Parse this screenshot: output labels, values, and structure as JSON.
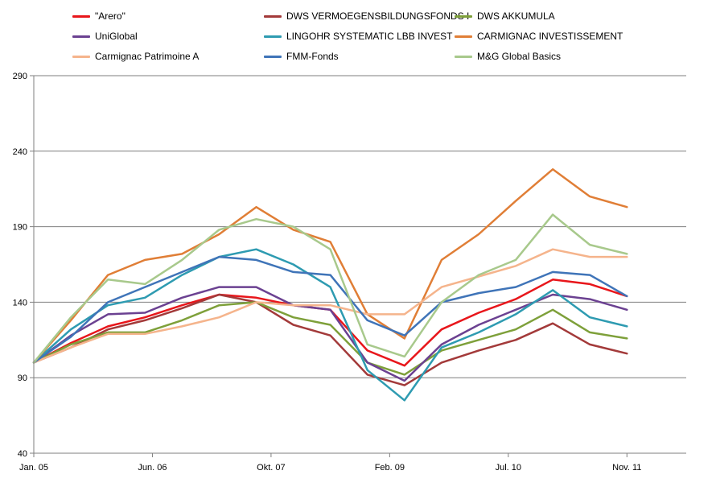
{
  "chart_data": {
    "type": "line",
    "title": "",
    "xlabel": "",
    "ylabel": "",
    "x_ticks": [
      "Jan. 05",
      "Jun. 06",
      "Okt. 07",
      "Feb. 09",
      "Jul. 10",
      "Nov. 11"
    ],
    "y_ticks": [
      40,
      90,
      140,
      190,
      240,
      290
    ],
    "ylim": [
      40,
      290
    ],
    "x": [
      "Jan. 05",
      "Jun. 05",
      "Dez. 05",
      "Jun. 06",
      "Dez. 06",
      "Jun. 07",
      "Okt. 07",
      "Feb. 08",
      "Jun. 08",
      "Okt. 08",
      "Feb. 09",
      "Jul. 09",
      "Jan. 10",
      "Jul. 10",
      "Jan. 11",
      "Jul. 11",
      "Nov. 11"
    ],
    "grid": true,
    "legend_position": "top",
    "series": [
      {
        "name": "\"Arero\"",
        "color": "#e8161b",
        "values": [
          100,
          113,
          124,
          130,
          138,
          145,
          143,
          138,
          135,
          108,
          98,
          122,
          133,
          142,
          155,
          152,
          144
        ]
      },
      {
        "name": "DWS VERMOEGENSBILDUNGSFONDS  I",
        "color": "#a33a3a",
        "values": [
          100,
          110,
          122,
          128,
          136,
          145,
          140,
          125,
          118,
          92,
          85,
          100,
          108,
          115,
          126,
          112,
          106
        ]
      },
      {
        "name": "DWS AKKUMULA",
        "color": "#7ea03a",
        "values": [
          100,
          112,
          120,
          120,
          128,
          138,
          140,
          130,
          125,
          100,
          92,
          108,
          115,
          122,
          135,
          120,
          116
        ]
      },
      {
        "name": "UniGlobal",
        "color": "#6b4191",
        "values": [
          100,
          118,
          132,
          133,
          143,
          150,
          150,
          138,
          135,
          100,
          88,
          112,
          125,
          135,
          145,
          142,
          135
        ]
      },
      {
        "name": "LINGOHR SYSTEMATIC  LBB INVEST",
        "color": "#2e9bb1",
        "values": [
          100,
          122,
          138,
          143,
          158,
          170,
          175,
          165,
          150,
          95,
          75,
          110,
          120,
          132,
          148,
          130,
          124
        ]
      },
      {
        "name": "CARMIGNAC  INVESTISSEMENT",
        "color": "#e07e36",
        "values": [
          100,
          128,
          158,
          168,
          172,
          185,
          203,
          188,
          180,
          132,
          116,
          168,
          185,
          207,
          228,
          210,
          203
        ]
      },
      {
        "name": "Carmignac Patrimoine A",
        "color": "#f5b48c",
        "values": [
          100,
          110,
          119,
          119,
          124,
          130,
          140,
          138,
          138,
          132,
          132,
          150,
          157,
          164,
          175,
          170,
          170
        ]
      },
      {
        "name": "FMM-Fonds",
        "color": "#3f74b8",
        "values": [
          100,
          117,
          140,
          150,
          160,
          170,
          168,
          160,
          158,
          128,
          118,
          140,
          146,
          150,
          160,
          158,
          144
        ]
      },
      {
        "name": "M&G Global Basics",
        "color": "#a8c98c",
        "values": [
          100,
          130,
          155,
          152,
          168,
          188,
          195,
          190,
          175,
          112,
          104,
          140,
          158,
          168,
          198,
          178,
          172
        ]
      }
    ]
  }
}
